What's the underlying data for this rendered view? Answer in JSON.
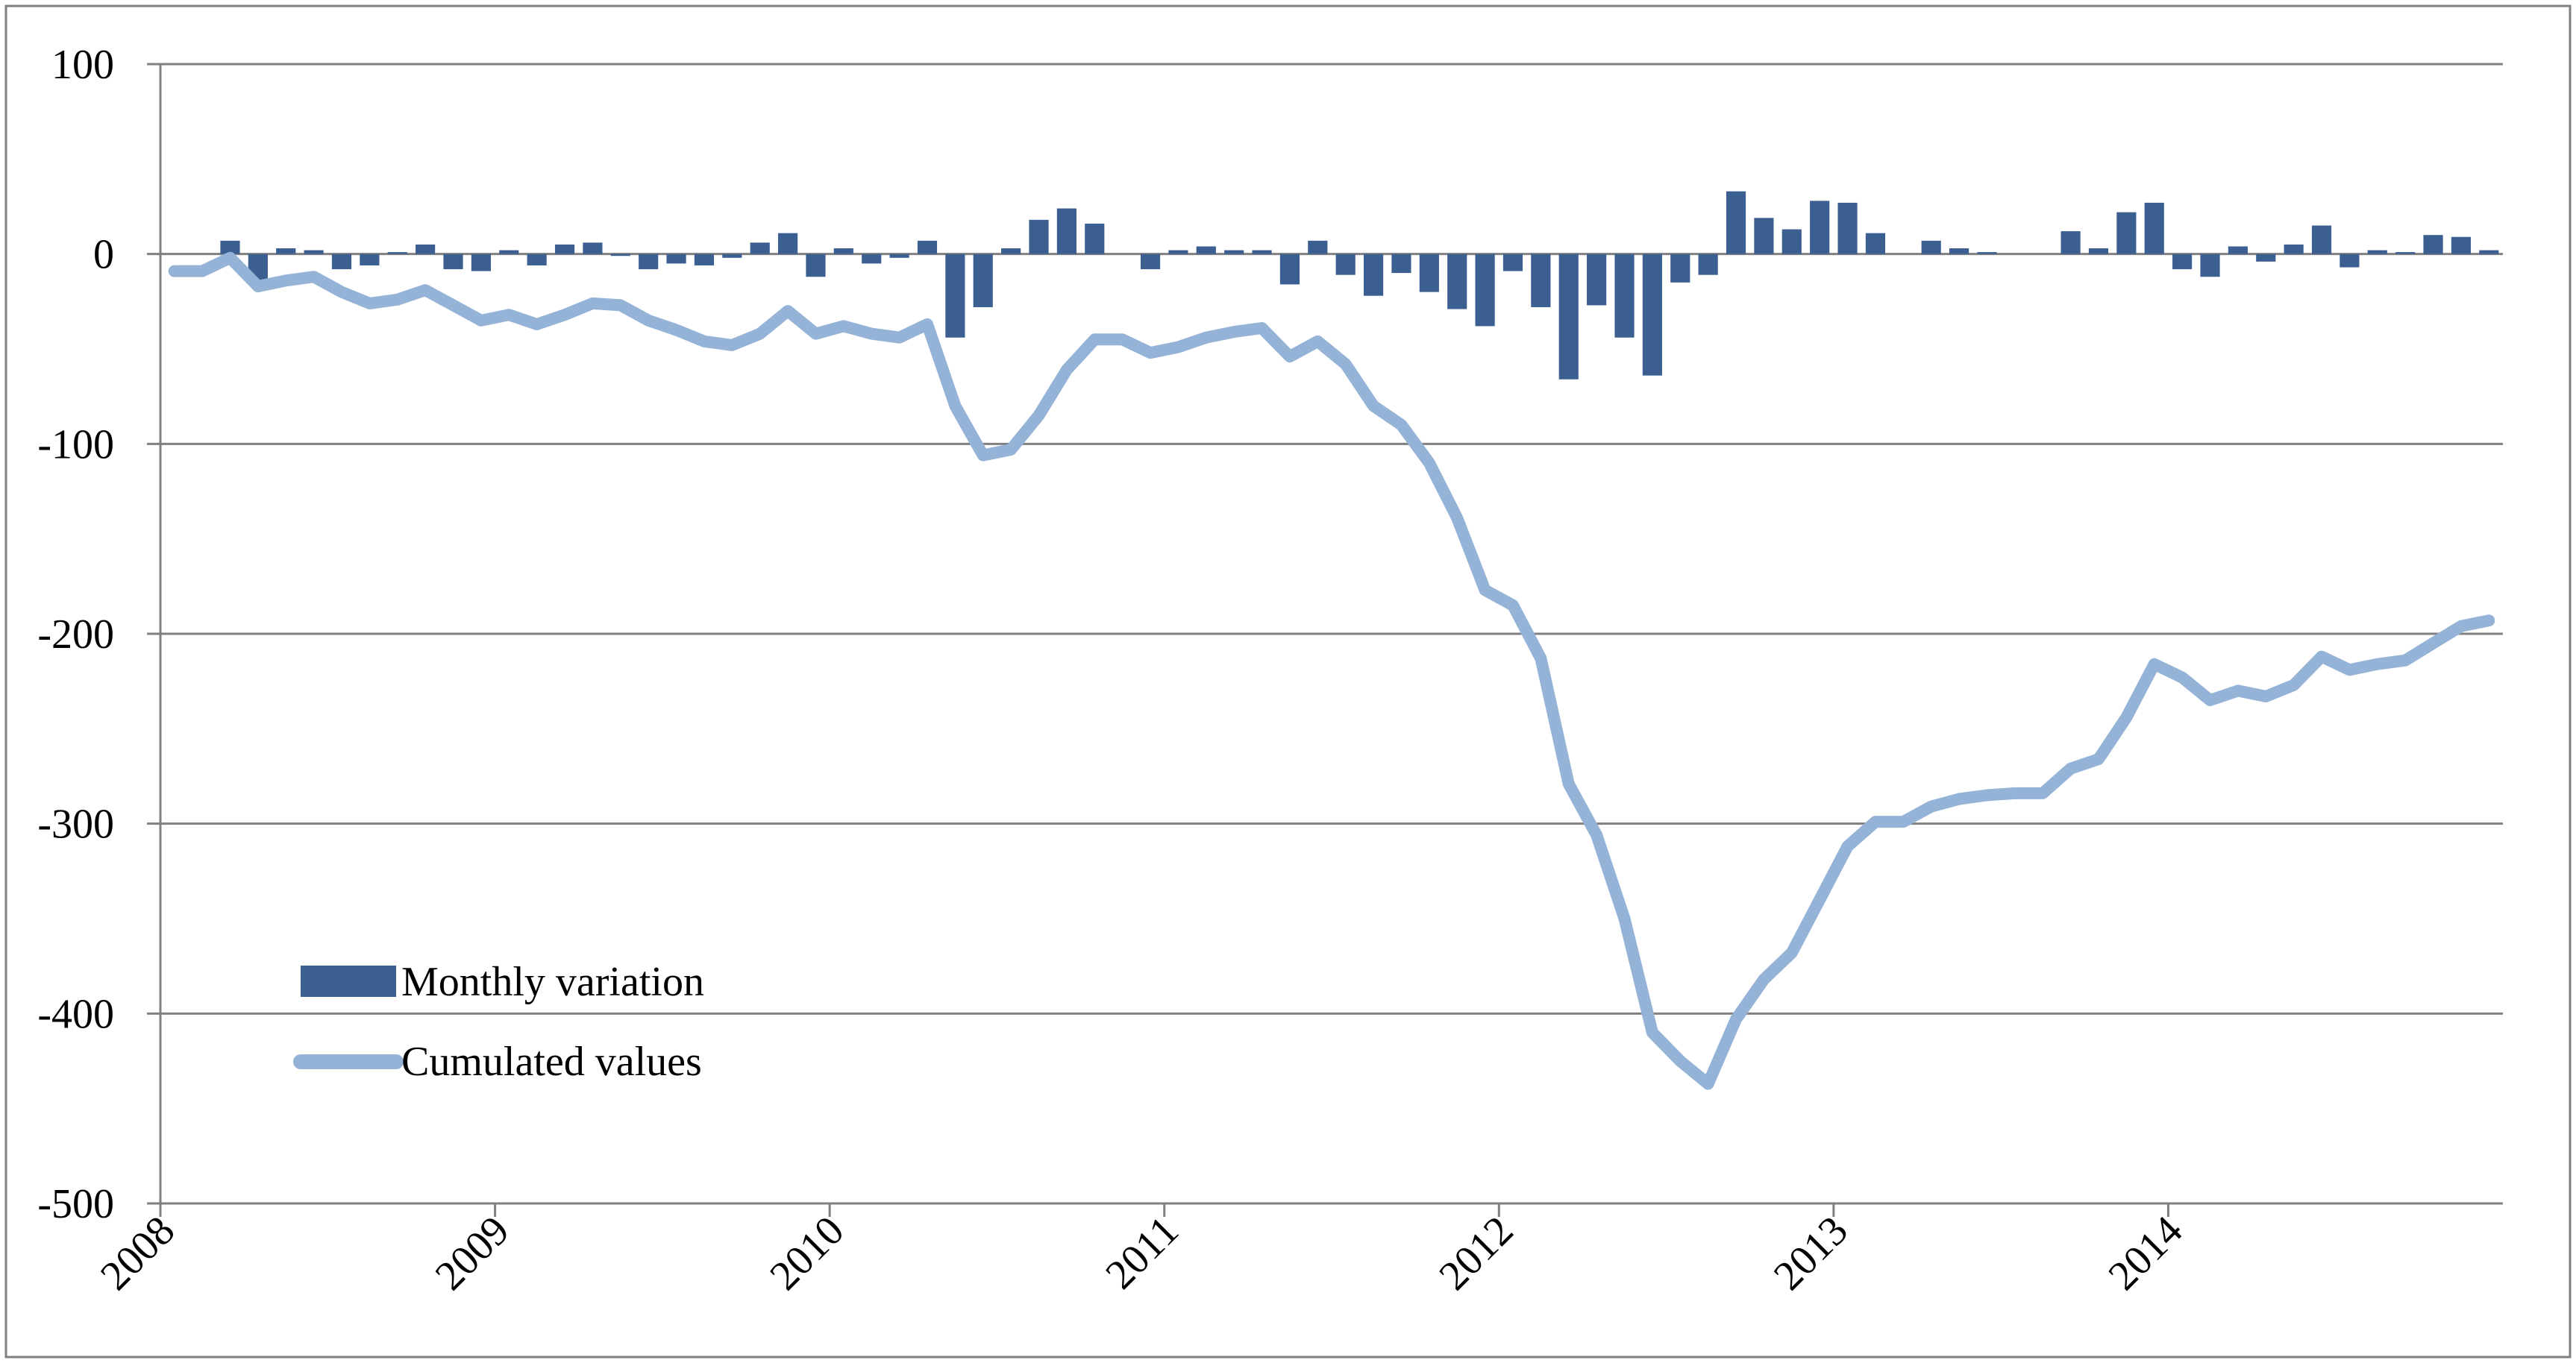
{
  "chart_data": {
    "type": "bar+line",
    "title": "",
    "xlabel": "",
    "ylabel": "",
    "ylim": [
      -500,
      100
    ],
    "yticks": [
      100,
      0,
      -100,
      -200,
      -300,
      -400,
      -500
    ],
    "ytick_labels": [
      "100",
      "0",
      "-100",
      "-200",
      "-300",
      "-400",
      "-500"
    ],
    "xtick_labels": [
      "2008",
      "2009",
      "2010",
      "2011",
      "2012",
      "2013",
      "2014"
    ],
    "grid": true,
    "legend_position": "bottom-left",
    "colors": {
      "bars": "#3b5f91",
      "line": "#95b3d7",
      "grid": "#808080"
    },
    "series": [
      {
        "name": "Monthly variation",
        "kind": "bar",
        "values": [
          0,
          0,
          7,
          -14,
          3,
          2,
          -8,
          -6,
          1,
          5,
          -8,
          -9,
          2,
          -6,
          5,
          6,
          -1,
          -8,
          -5,
          -6,
          -2,
          6,
          11,
          -12,
          3,
          -5,
          -2,
          7,
          -44,
          -28,
          3,
          18,
          24,
          16,
          0,
          -8,
          2,
          4,
          2,
          2,
          -16,
          7,
          -11,
          -22,
          -10,
          -20,
          -29,
          -38,
          -9,
          -28,
          -66,
          -27,
          -44,
          -64,
          -15,
          -11,
          33,
          19,
          13,
          28,
          27,
          11,
          0,
          7,
          3,
          1,
          0,
          0,
          12,
          3,
          22,
          27,
          -8,
          -12,
          4,
          -4,
          5,
          15,
          -7,
          2,
          1,
          10,
          9,
          2
        ]
      },
      {
        "name": "Cumulated values",
        "kind": "line",
        "values": [
          -9,
          -9,
          -2,
          -17,
          -14,
          -12,
          -20,
          -26,
          -24,
          -19,
          -27,
          -35,
          -32,
          -37,
          -32,
          -26,
          -27,
          -35,
          -40,
          -46,
          -48,
          -42,
          -30,
          -42,
          -38,
          -42,
          -44,
          -37,
          -80,
          -106,
          -103,
          -85,
          -61,
          -45,
          -45,
          -52,
          -49,
          -44,
          -41,
          -39,
          -54,
          -46,
          -58,
          -80,
          -90,
          -110,
          -139,
          -177,
          -185,
          -213,
          -279,
          -306,
          -350,
          -410,
          -425,
          -437,
          -403,
          -382,
          -368,
          -340,
          -312,
          -299,
          -299,
          -291,
          -287,
          -285,
          -284,
          -284,
          -271,
          -266,
          -244,
          -216,
          -223,
          -235,
          -230,
          -233,
          -227,
          -212,
          -219,
          -216,
          -214,
          -205,
          -196,
          -193
        ]
      }
    ]
  }
}
